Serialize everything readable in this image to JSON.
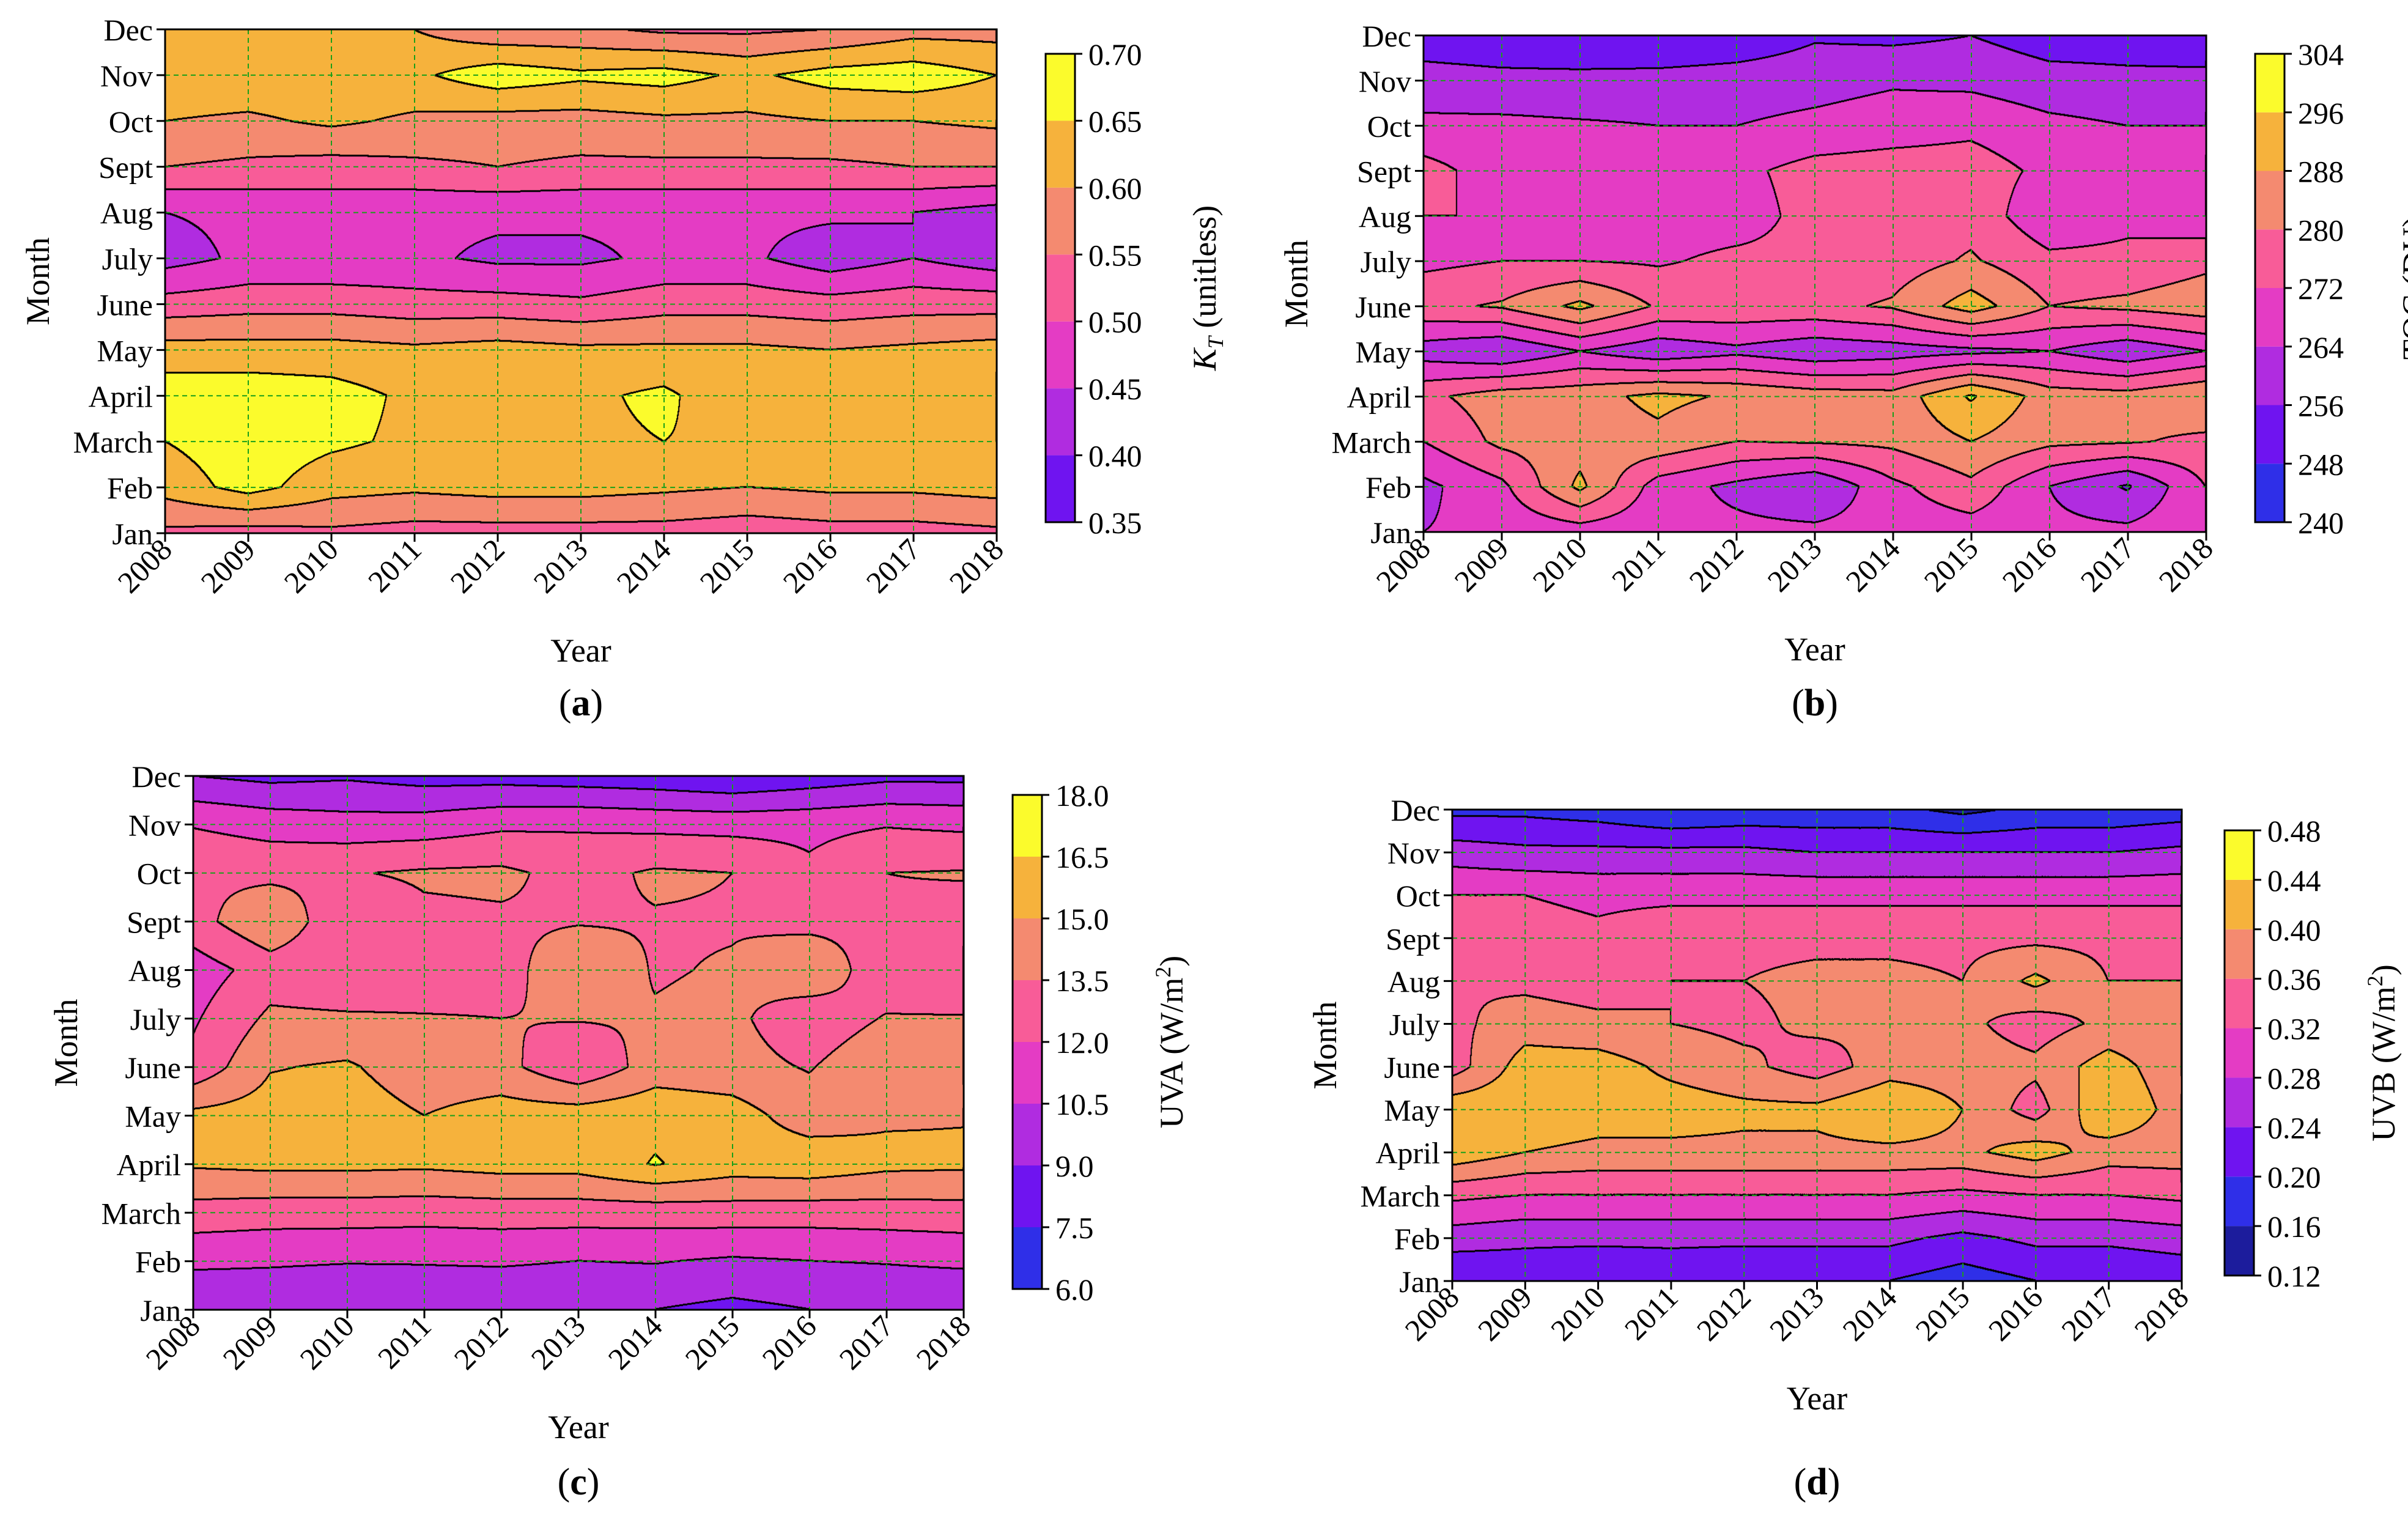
{
  "figure": {
    "colormap": [
      "#10103a",
      "#1c1c9c",
      "#2f2fe8",
      "#6f14f0",
      "#b02ce0",
      "#e43cc4",
      "#f85c98",
      "#f48a70",
      "#f6b23c",
      "#fbfb2c"
    ]
  },
  "chart_data": [
    {
      "id": "a",
      "type": "heatmap",
      "title": "",
      "caption": "a",
      "xlabel": "Year",
      "ylabel": "Month",
      "colorbar_label": "K_T (unitless)",
      "colorbar_label_parts": {
        "symbol": "K",
        "subscript": "T",
        "unit": " (unitless)"
      },
      "x": [
        "2008",
        "2009",
        "2010",
        "2011",
        "2012",
        "2013",
        "2014",
        "2015",
        "2016",
        "2017",
        "2018"
      ],
      "y": [
        "Jan",
        "Feb",
        "March",
        "April",
        "May",
        "June",
        "July",
        "Aug",
        "Sept",
        "Oct",
        "Nov",
        "Dec"
      ],
      "colorbar_ticks": [
        "0.35",
        "0.40",
        "0.45",
        "0.50",
        "0.55",
        "0.60",
        "0.65",
        "0.70"
      ],
      "levels": [
        0.35,
        0.4,
        0.45,
        0.5,
        0.55,
        0.6,
        0.65,
        0.7
      ],
      "z": [
        [
          0.54,
          0.53,
          0.54,
          0.53,
          0.53,
          0.53,
          0.53,
          0.52,
          0.53,
          0.53,
          0.54
        ],
        [
          0.62,
          0.67,
          0.62,
          0.61,
          0.62,
          0.62,
          0.61,
          0.6,
          0.61,
          0.61,
          0.62
        ],
        [
          0.65,
          0.68,
          0.66,
          0.64,
          0.65,
          0.64,
          0.65,
          0.64,
          0.63,
          0.63,
          0.65
        ],
        [
          0.68,
          0.68,
          0.67,
          0.64,
          0.65,
          0.64,
          0.66,
          0.61,
          0.64,
          0.64,
          0.64
        ],
        [
          0.62,
          0.62,
          0.62,
          0.61,
          0.62,
          0.61,
          0.61,
          0.61,
          0.6,
          0.61,
          0.62
        ],
        [
          0.52,
          0.53,
          0.53,
          0.52,
          0.52,
          0.51,
          0.53,
          0.53,
          0.52,
          0.53,
          0.53
        ],
        [
          0.43,
          0.46,
          0.46,
          0.46,
          0.44,
          0.44,
          0.46,
          0.46,
          0.42,
          0.45,
          0.42
        ],
        [
          0.45,
          0.46,
          0.47,
          0.46,
          0.46,
          0.46,
          0.46,
          0.46,
          0.46,
          0.45,
          0.43
        ],
        [
          0.55,
          0.54,
          0.53,
          0.54,
          0.55,
          0.54,
          0.54,
          0.54,
          0.54,
          0.55,
          0.55
        ],
        [
          0.6,
          0.59,
          0.61,
          0.59,
          0.58,
          0.58,
          0.59,
          0.59,
          0.6,
          0.6,
          0.61
        ],
        [
          0.64,
          0.64,
          0.64,
          0.64,
          0.68,
          0.66,
          0.67,
          0.64,
          0.67,
          0.68,
          0.65
        ],
        [
          0.62,
          0.61,
          0.61,
          0.6,
          0.56,
          0.56,
          0.54,
          0.54,
          0.55,
          0.58,
          0.58
        ]
      ]
    },
    {
      "id": "b",
      "type": "heatmap",
      "title": "",
      "caption": "b",
      "xlabel": "Year",
      "ylabel": "Month",
      "colorbar_label": "TOC (DU)",
      "x": [
        "2008",
        "2009",
        "2010",
        "2011",
        "2012",
        "2013",
        "2014",
        "2015",
        "2016",
        "2017",
        "2018"
      ],
      "y": [
        "Jan",
        "Feb",
        "March",
        "April",
        "May",
        "June",
        "July",
        "Aug",
        "Sept",
        "Oct",
        "Nov",
        "Dec"
      ],
      "colorbar_ticks": [
        "240",
        "248",
        "256",
        "264",
        "272",
        "280",
        "288",
        "296",
        "304"
      ],
      "levels": [
        240,
        248,
        256,
        264,
        272,
        280,
        288,
        296,
        304
      ],
      "z": [
        [
          264,
          266,
          268,
          266,
          266,
          266,
          267,
          268,
          266,
          266,
          270
        ],
        [
          262,
          270,
          290,
          268,
          262,
          256,
          270,
          278,
          264,
          255,
          272
        ],
        [
          272,
          282,
          284,
          286,
          280,
          281,
          282,
          288,
          282,
          281,
          278
        ],
        [
          278,
          284,
          285,
          290,
          287,
          284,
          283,
          297,
          284,
          283,
          288
        ],
        [
          260,
          256,
          264,
          258,
          262,
          258,
          260,
          262,
          264,
          258,
          264
        ],
        [
          278,
          281,
          290,
          279,
          278,
          278,
          281,
          292,
          280,
          282,
          285
        ],
        [
          270,
          272,
          272,
          271,
          274,
          274,
          276,
          281,
          274,
          274,
          278
        ],
        [
          272,
          272,
          270,
          268,
          268,
          275,
          276,
          277,
          266,
          270,
          266
        ],
        [
          275,
          268,
          269,
          268,
          270,
          275,
          276,
          276,
          270,
          268,
          268
        ],
        [
          266,
          266,
          265,
          264,
          264,
          266,
          268,
          270,
          266,
          264,
          264
        ],
        [
          259,
          258,
          258,
          259,
          260,
          261,
          263,
          262,
          259,
          258,
          259
        ],
        [
          252,
          251,
          250,
          248,
          250,
          255,
          254,
          256,
          252,
          252,
          249
        ]
      ]
    },
    {
      "id": "c",
      "type": "heatmap",
      "title": "",
      "caption": "c",
      "xlabel": "Year",
      "ylabel": "Month",
      "colorbar_label": "UVA (W/m^2)",
      "colorbar_label_parts": {
        "text": "UVA (W/m",
        "superscript": "2",
        "close": ")"
      },
      "x": [
        "2008",
        "2009",
        "2010",
        "2011",
        "2012",
        "2013",
        "2014",
        "2015",
        "2016",
        "2017",
        "2018"
      ],
      "y": [
        "Jan",
        "Feb",
        "March",
        "April",
        "May",
        "June",
        "July",
        "Aug",
        "Sept",
        "Oct",
        "Nov",
        "Dec"
      ],
      "colorbar_ticks": [
        "6.0",
        "7.5",
        "9.0",
        "10.5",
        "12.0",
        "13.5",
        "15.0",
        "16.5",
        "18.0"
      ],
      "levels": [
        6.0,
        7.5,
        9.0,
        10.5,
        12.0,
        13.5,
        15.0,
        16.5,
        18.0
      ],
      "z": [
        [
          9.2,
          9.3,
          9.0,
          9.4,
          9.1,
          9.1,
          9.0,
          8.6,
          9.0,
          9.2,
          9.0
        ],
        [
          10.8,
          10.7,
          10.6,
          10.6,
          10.7,
          10.5,
          10.6,
          10.3,
          10.5,
          10.6,
          10.8
        ],
        [
          12.9,
          12.7,
          12.7,
          12.6,
          12.7,
          12.7,
          12.7,
          12.8,
          12.7,
          12.8,
          12.9
        ],
        [
          15.2,
          15.4,
          15.4,
          15.3,
          15.6,
          15.6,
          16.6,
          15.8,
          16.0,
          15.4,
          15.3
        ],
        [
          15.4,
          15.7,
          15.8,
          15.0,
          15.7,
          15.8,
          16.1,
          15.7,
          14.2,
          14.8,
          14.9
        ],
        [
          12.4,
          14.9,
          15.2,
          14.1,
          14.0,
          12.2,
          14.2,
          14.0,
          13.4,
          14.6,
          14.6
        ],
        [
          11.8,
          13.8,
          13.7,
          13.6,
          13.5,
          13.6,
          13.6,
          13.8,
          12.6,
          13.6,
          13.6
        ],
        [
          11.2,
          12.7,
          12.3,
          12.6,
          12.9,
          14.6,
          13.4,
          13.6,
          14.6,
          12.6,
          12.2
        ],
        [
          12.9,
          14.8,
          12.2,
          13.2,
          13.3,
          13.4,
          13.4,
          13.4,
          13.1,
          13.3,
          13.0
        ],
        [
          13.3,
          13.1,
          13.4,
          13.7,
          13.8,
          13.0,
          13.7,
          13.5,
          12.3,
          13.5,
          13.6
        ],
        [
          11.9,
          11.4,
          11.1,
          11.2,
          11.7,
          11.8,
          11.6,
          11.5,
          11.6,
          11.9,
          11.7
        ],
        [
          9.0,
          8.6,
          8.8,
          8.4,
          8.4,
          8.2,
          8.0,
          7.6,
          8.1,
          8.6,
          8.6
        ]
      ]
    },
    {
      "id": "d",
      "type": "heatmap",
      "title": "",
      "caption": "d",
      "xlabel": "Year",
      "ylabel": "Month",
      "colorbar_label": "UVB (W/m^2)",
      "colorbar_label_parts": {
        "text": "UVB (W/m",
        "superscript": "2",
        "close": ")"
      },
      "x": [
        "2008",
        "2009",
        "2010",
        "2011",
        "2012",
        "2013",
        "2014",
        "2015",
        "2016",
        "2017",
        "2018"
      ],
      "y": [
        "Jan",
        "Feb",
        "March",
        "April",
        "May",
        "June",
        "July",
        "Aug",
        "Sept",
        "Oct",
        "Nov",
        "Dec"
      ],
      "colorbar_ticks": [
        "0.12",
        "0.16",
        "0.20",
        "0.24",
        "0.28",
        "0.32",
        "0.36",
        "0.40",
        "0.44",
        "0.48"
      ],
      "levels": [
        0.12,
        0.16,
        0.2,
        0.24,
        0.28,
        0.32,
        0.36,
        0.4,
        0.44,
        0.48
      ],
      "z": [
        [
          0.2,
          0.21,
          0.2,
          0.21,
          0.2,
          0.2,
          0.2,
          0.18,
          0.2,
          0.2,
          0.21
        ],
        [
          0.26,
          0.25,
          0.25,
          0.25,
          0.25,
          0.25,
          0.25,
          0.23,
          0.25,
          0.25,
          0.26
        ],
        [
          0.33,
          0.32,
          0.32,
          0.32,
          0.32,
          0.32,
          0.32,
          0.31,
          0.32,
          0.32,
          0.33
        ],
        [
          0.43,
          0.4,
          0.39,
          0.39,
          0.39,
          0.39,
          0.39,
          0.39,
          0.42,
          0.38,
          0.38
        ],
        [
          0.43,
          0.43,
          0.42,
          0.42,
          0.41,
          0.41,
          0.44,
          0.4,
          0.34,
          0.44,
          0.38
        ],
        [
          0.34,
          0.42,
          0.42,
          0.39,
          0.37,
          0.34,
          0.38,
          0.38,
          0.37,
          0.42,
          0.37
        ],
        [
          0.35,
          0.38,
          0.37,
          0.36,
          0.35,
          0.37,
          0.36,
          0.37,
          0.34,
          0.37,
          0.37
        ],
        [
          0.36,
          0.35,
          0.34,
          0.36,
          0.36,
          0.37,
          0.37,
          0.36,
          0.41,
          0.36,
          0.36
        ],
        [
          0.35,
          0.34,
          0.33,
          0.35,
          0.35,
          0.35,
          0.35,
          0.35,
          0.35,
          0.35,
          0.35
        ],
        [
          0.32,
          0.32,
          0.31,
          0.31,
          0.31,
          0.31,
          0.31,
          0.31,
          0.31,
          0.31,
          0.31
        ],
        [
          0.26,
          0.25,
          0.25,
          0.25,
          0.25,
          0.24,
          0.24,
          0.24,
          0.24,
          0.24,
          0.25
        ],
        [
          0.19,
          0.19,
          0.18,
          0.16,
          0.17,
          0.17,
          0.17,
          0.15,
          0.17,
          0.17,
          0.18
        ]
      ]
    }
  ]
}
